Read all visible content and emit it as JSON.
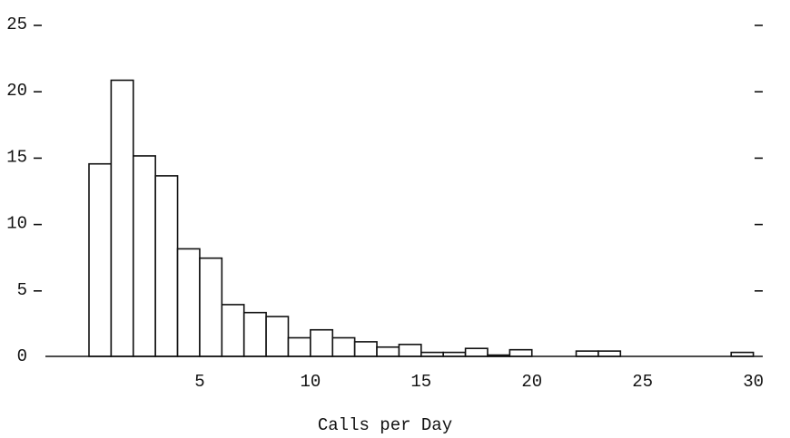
{
  "chart_data": {
    "type": "histogram",
    "xlabel": "Calls per Day",
    "bins": [
      0,
      1,
      2,
      3,
      4,
      5,
      6,
      7,
      8,
      9,
      10,
      11,
      12,
      13,
      14,
      15,
      16,
      17,
      18,
      19,
      20,
      21,
      22,
      23,
      24,
      25,
      26,
      27,
      28,
      29,
      30
    ],
    "counts": [
      14.5,
      20.8,
      15.1,
      13.6,
      8.1,
      7.4,
      3.9,
      3.3,
      3.0,
      1.4,
      2.0,
      1.4,
      1.1,
      0.7,
      0.9,
      0.3,
      0.3,
      0.6,
      0.1,
      0.5,
      0,
      0,
      0.4,
      0.4,
      0,
      0,
      0,
      0,
      0,
      0.3
    ],
    "xlim": [
      0,
      31
    ],
    "xticks": [
      5,
      10,
      15,
      20,
      25,
      30
    ],
    "ylim": [
      0,
      25
    ],
    "yticks": [
      0,
      5,
      10,
      15,
      20,
      25
    ]
  }
}
